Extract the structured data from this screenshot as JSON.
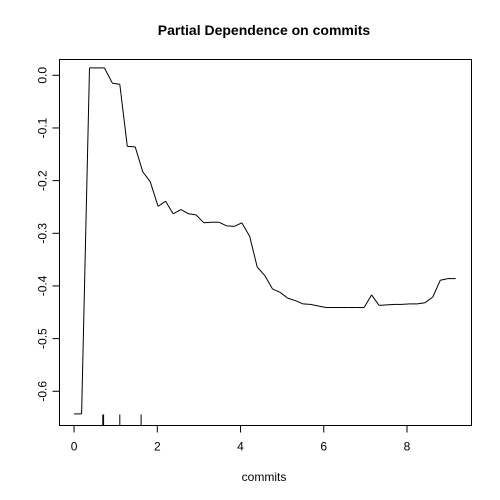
{
  "chart_data": {
    "type": "line",
    "title": "Partial Dependence on commits",
    "xlabel": "commits",
    "ylabel": "",
    "xlim": [
      -0.35,
      9.55
    ],
    "ylim": [
      -0.665,
      0.03
    ],
    "x_ticks": [
      0,
      2,
      4,
      6,
      8
    ],
    "x_tick_labels": [
      "0",
      "2",
      "4",
      "6",
      "8"
    ],
    "y_ticks": [
      0.0,
      -0.1,
      -0.2,
      -0.3,
      -0.4,
      -0.5,
      -0.6
    ],
    "y_tick_labels": [
      "0.0",
      "-0.1",
      "-0.2",
      "-0.3",
      "-0.4",
      "-0.5",
      "-0.6"
    ],
    "grid": false,
    "series": [
      {
        "x": [
          0.0,
          0.18,
          0.37,
          0.55,
          0.73,
          0.92,
          1.1,
          1.28,
          1.47,
          1.65,
          1.83,
          2.02,
          2.2,
          2.38,
          2.57,
          2.75,
          2.93,
          3.12,
          3.3,
          3.48,
          3.67,
          3.85,
          4.03,
          4.22,
          4.4,
          4.58,
          4.77,
          4.95,
          5.13,
          5.32,
          5.5,
          5.68,
          5.87,
          6.05,
          6.23,
          6.42,
          6.6,
          6.78,
          6.97,
          7.15,
          7.33,
          7.52,
          7.7,
          7.88,
          8.07,
          8.25,
          8.43,
          8.62,
          8.8,
          8.98,
          9.17
        ],
        "y": [
          -0.643,
          -0.643,
          0.014,
          0.014,
          0.014,
          -0.015,
          -0.017,
          -0.135,
          -0.136,
          -0.183,
          -0.202,
          -0.249,
          -0.239,
          -0.263,
          -0.255,
          -0.263,
          -0.265,
          -0.28,
          -0.279,
          -0.279,
          -0.286,
          -0.287,
          -0.28,
          -0.306,
          -0.364,
          -0.38,
          -0.406,
          -0.412,
          -0.423,
          -0.428,
          -0.434,
          -0.435,
          -0.438,
          -0.441,
          -0.441,
          -0.441,
          -0.441,
          -0.441,
          -0.441,
          -0.417,
          -0.437,
          -0.436,
          -0.435,
          -0.435,
          -0.434,
          -0.434,
          -0.432,
          -0.421,
          -0.389,
          -0.386,
          -0.386
        ]
      }
    ],
    "rug": [
      0.69,
      0.71,
      1.1,
      1.61
    ]
  }
}
